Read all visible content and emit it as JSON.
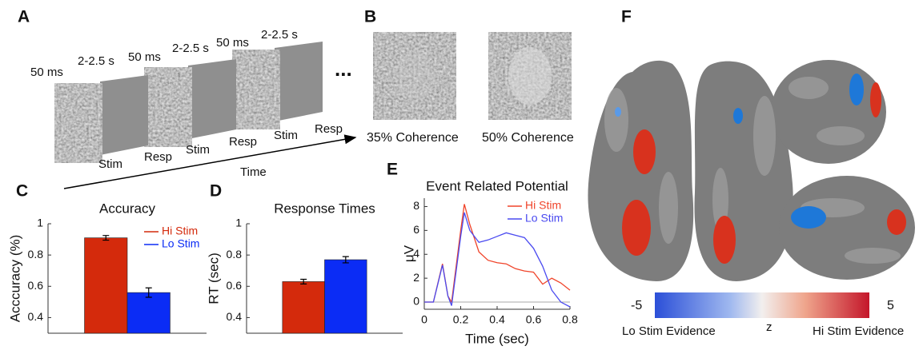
{
  "panels": {
    "A": {
      "letter": "A",
      "durations": [
        "50 ms",
        "2-2.5 s",
        "50 ms",
        "2-2.5 s",
        "50 ms",
        "2-2.5 s"
      ],
      "events": [
        "Stim",
        "Resp",
        "Stim",
        "Resp",
        "Stim",
        "Resp"
      ],
      "ellipsis": "...",
      "axis_label": "Time"
    },
    "B": {
      "letter": "B",
      "captions": [
        "35% Coherence",
        "50% Coherence"
      ]
    },
    "C": {
      "letter": "C"
    },
    "D": {
      "letter": "D"
    },
    "E": {
      "letter": "E"
    },
    "F": {
      "letter": "F",
      "colorbar": {
        "min": -5,
        "max": 5,
        "label": "z",
        "low_label": "Lo Stim Evidence",
        "high_label": "Hi Stim Evidence"
      }
    }
  },
  "chart_data": [
    {
      "type": "bar",
      "title": "Accuracy",
      "y_label": "Acccuracy (%)",
      "categories": [
        null
      ],
      "series": [
        {
          "name": "Hi Stim",
          "color": "#d42a0c",
          "values": [
            0.91
          ],
          "errors": [
            0.015
          ]
        },
        {
          "name": "Lo Stim",
          "color": "#0b2cf5",
          "values": [
            0.56
          ],
          "errors": [
            0.03
          ]
        }
      ],
      "ylim": [
        0.3,
        1
      ],
      "yticks": [
        0.4,
        0.6,
        0.8,
        1
      ],
      "legend": "upper right"
    },
    {
      "type": "bar",
      "title": "Response Times",
      "y_label": "RT (sec)",
      "categories": [
        null
      ],
      "series": [
        {
          "color": "#d42a0c",
          "values": [
            0.63
          ],
          "errors": [
            0.015
          ]
        },
        {
          "color": "#0b2cf5",
          "values": [
            0.77
          ],
          "errors": [
            0.02
          ]
        }
      ],
      "ylim": [
        0.3,
        1
      ],
      "yticks": [
        0.4,
        0.6,
        0.8,
        1
      ]
    },
    {
      "type": "line",
      "title": "Event Related Potential",
      "x_label": "Time (sec)",
      "y_label": "μV",
      "x": [
        0,
        0.05,
        0.1,
        0.13,
        0.15,
        0.2,
        0.22,
        0.25,
        0.3,
        0.35,
        0.4,
        0.45,
        0.5,
        0.55,
        0.6,
        0.65,
        0.7,
        0.75,
        0.8
      ],
      "series": [
        {
          "name": "Hi Stim",
          "color": "#f0442a",
          "values": [
            0,
            0,
            3.2,
            0.5,
            0,
            6,
            8.2,
            6.5,
            4.2,
            3.5,
            3.3,
            3.2,
            2.8,
            2.6,
            2.5,
            1.5,
            2.0,
            1.6,
            1.0
          ]
        },
        {
          "name": "Lo Stim",
          "color": "#4a4af0",
          "values": [
            0,
            0,
            3.1,
            0.5,
            -0.3,
            5.5,
            7.5,
            6.0,
            5.0,
            5.2,
            5.5,
            5.8,
            5.6,
            5.4,
            4.5,
            3.0,
            1.0,
            0,
            -0.4
          ]
        }
      ],
      "xlim": [
        0,
        0.8
      ],
      "xticks": [
        0,
        0.2,
        0.4,
        0.6,
        0.8
      ],
      "ylim": [
        -0.6,
        8.7
      ],
      "yticks": [
        0,
        2,
        4,
        6,
        8
      ],
      "legend": "upper right"
    }
  ]
}
